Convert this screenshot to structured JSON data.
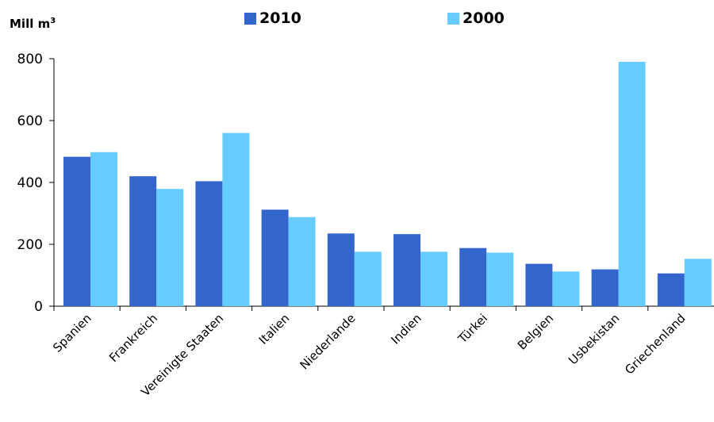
{
  "chart_data": {
    "type": "bar",
    "unit_label": "Mill m",
    "unit_superscript": "3",
    "categories": [
      "Spanien",
      "Frankreich",
      "Vereinigte Staaten",
      "Italien",
      "Niederlande",
      "Indien",
      "Türkei",
      "Belgien",
      "Usbekistan",
      "Griechenland"
    ],
    "series": [
      {
        "name": "2010",
        "color": "#3366cc",
        "values": [
          483,
          420,
          404,
          312,
          235,
          233,
          188,
          137,
          119,
          106
        ]
      },
      {
        "name": "2000",
        "color": "#66ccff",
        "values": [
          498,
          379,
          560,
          288,
          176,
          176,
          173,
          112,
          790,
          153
        ]
      }
    ],
    "ylim": [
      0,
      800
    ],
    "yticks": [
      "0",
      "200",
      "400",
      "600",
      "800"
    ],
    "grid": false,
    "legend_position": "top"
  }
}
